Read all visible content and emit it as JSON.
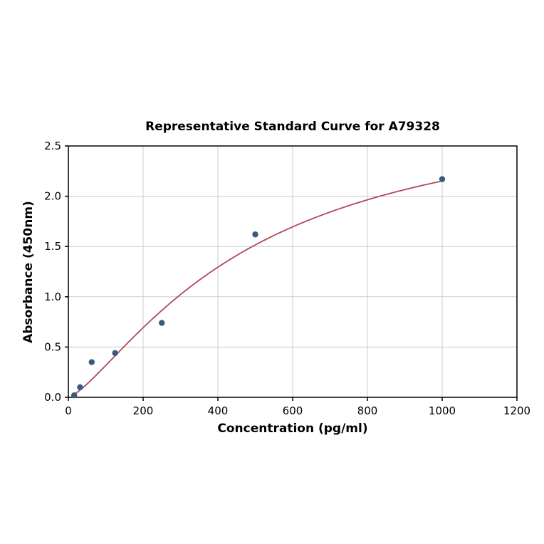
{
  "chart_data": {
    "type": "scatter",
    "title": "Representative Standard Curve for A79328",
    "xlabel": "Concentration (pg/ml)",
    "ylabel": "Absorbance (450nm)",
    "xlim": [
      0,
      1200
    ],
    "ylim": [
      0,
      2.5
    ],
    "xticks": [
      {
        "value": 0,
        "label": "0"
      },
      {
        "value": 200,
        "label": "200"
      },
      {
        "value": 400,
        "label": "400"
      },
      {
        "value": 600,
        "label": "600"
      },
      {
        "value": 800,
        "label": "800"
      },
      {
        "value": 1000,
        "label": "1000"
      },
      {
        "value": 1200,
        "label": "1200"
      }
    ],
    "yticks": [
      {
        "value": 0.0,
        "label": "0.0"
      },
      {
        "value": 0.5,
        "label": "0.5"
      },
      {
        "value": 1.0,
        "label": "1.0"
      },
      {
        "value": 1.5,
        "label": "1.5"
      },
      {
        "value": 2.0,
        "label": "2.0"
      },
      {
        "value": 2.5,
        "label": "2.5"
      }
    ],
    "grid": true,
    "legend": "none",
    "points": {
      "x": [
        15.6,
        31.2,
        62.5,
        125,
        250,
        500,
        1000
      ],
      "y": [
        0.02,
        0.1,
        0.35,
        0.44,
        0.74,
        1.62,
        2.17
      ]
    },
    "fit_curve": {
      "model": "4PL",
      "a": 0,
      "d": 2.95,
      "c": 480,
      "b": 1.35,
      "x_start": 8,
      "x_end": 1000
    },
    "colors": {
      "points": "#3a5a80",
      "curve": "#b0485a",
      "grid": "#cccccc",
      "axis": "#000000",
      "background": "#ffffff"
    }
  }
}
